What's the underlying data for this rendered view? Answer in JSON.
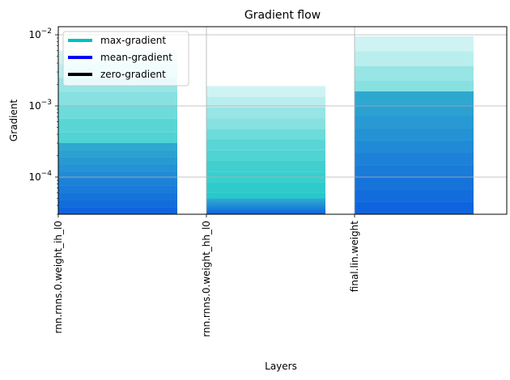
{
  "chart_data": {
    "type": "bar",
    "title": "Gradient flow",
    "xlabel": "Layers",
    "ylabel": "Gradient",
    "y_scale": "log",
    "ylim": [
      3e-05,
      0.013
    ],
    "y_ticks": [
      {
        "value": 0.01,
        "base": "10",
        "exp": "−2"
      },
      {
        "value": 0.001,
        "base": "10",
        "exp": "−3"
      },
      {
        "value": 0.0001,
        "base": "10",
        "exp": "−4"
      }
    ],
    "categories": [
      "rnn.rnns.0.weight_ih_l0",
      "rnn.rnns.0.weight_hh_l0",
      "final.lin.weight"
    ],
    "grid": true,
    "legend_position": "top-left",
    "series": [
      {
        "name": "max-gradient",
        "color": "#00bfbf",
        "values": [
          0.006,
          0.0019,
          0.0095
        ]
      },
      {
        "name": "mean-gradient",
        "color": "#0000ff",
        "values": [
          0.0003,
          5e-05,
          0.0016
        ]
      },
      {
        "name": "zero-gradient",
        "color": "#000000",
        "values": [
          0,
          0,
          0
        ]
      }
    ]
  }
}
